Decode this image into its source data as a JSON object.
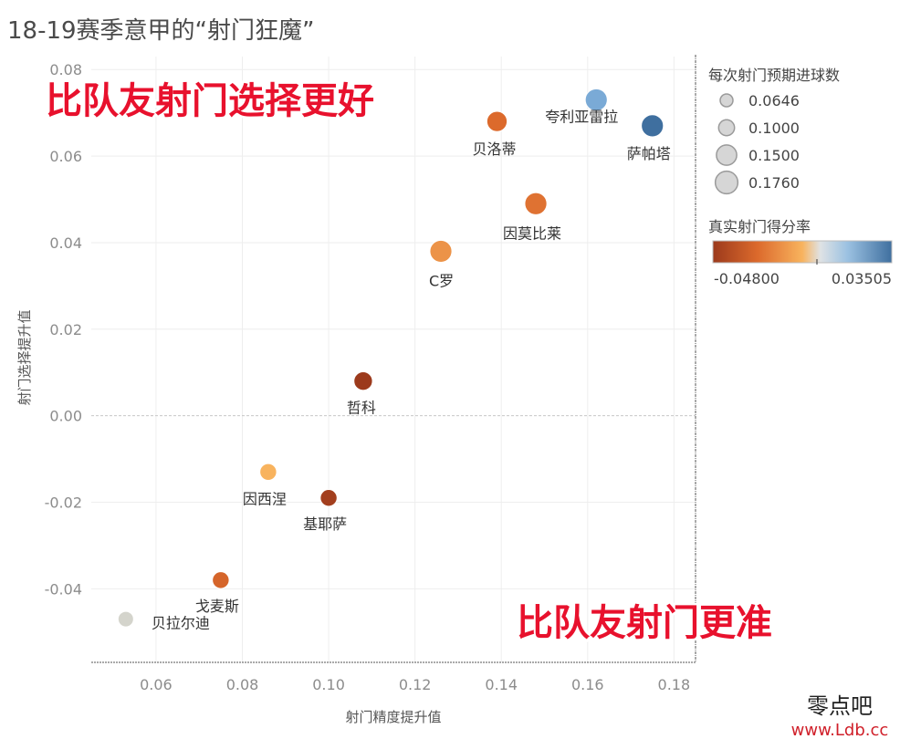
{
  "chart_data": {
    "type": "scatter",
    "title": "18-19赛季意甲的“射门狂魔”",
    "xlabel": "射门精度提升值",
    "ylabel": "射门选择提升值",
    "xlim": [
      0.045,
      0.185
    ],
    "ylim": [
      -0.057,
      0.083
    ],
    "x_ticks": [
      "0.06",
      "0.08",
      "0.10",
      "0.12",
      "0.14",
      "0.16",
      "0.18"
    ],
    "x_tick_values": [
      0.06,
      0.08,
      0.1,
      0.12,
      0.14,
      0.16,
      0.18
    ],
    "y_ticks": [
      "0.08",
      "0.06",
      "0.04",
      "0.02",
      "0.00",
      "-0.02",
      "-0.04"
    ],
    "y_tick_values": [
      0.08,
      0.06,
      0.04,
      0.02,
      0.0,
      -0.02,
      -0.04
    ],
    "points": [
      {
        "name": "夸利亚雷拉",
        "x": 0.162,
        "y": 0.073,
        "size": 0.15,
        "color_value": 0.02
      },
      {
        "name": "萨帕塔",
        "x": 0.175,
        "y": 0.067,
        "size": 0.15,
        "color_value": 0.035
      },
      {
        "name": "贝洛蒂",
        "x": 0.139,
        "y": 0.068,
        "size": 0.13,
        "color_value": -0.03
      },
      {
        "name": "因莫比莱",
        "x": 0.148,
        "y": 0.049,
        "size": 0.15,
        "color_value": -0.028
      },
      {
        "name": "C罗",
        "x": 0.126,
        "y": 0.038,
        "size": 0.15,
        "color_value": -0.02
      },
      {
        "name": "哲科",
        "x": 0.108,
        "y": 0.008,
        "size": 0.11,
        "color_value": -0.048
      },
      {
        "name": "因西涅",
        "x": 0.086,
        "y": -0.013,
        "size": 0.09,
        "color_value": -0.012
      },
      {
        "name": "基耶萨",
        "x": 0.1,
        "y": -0.019,
        "size": 0.09,
        "color_value": -0.046
      },
      {
        "name": "戈麦斯",
        "x": 0.075,
        "y": -0.038,
        "size": 0.09,
        "color_value": -0.032
      },
      {
        "name": "贝拉尔迪",
        "x": 0.053,
        "y": -0.047,
        "size": 0.075,
        "color_value": 0.0
      }
    ],
    "annotations": {
      "top_left": "比队友射门选择更好",
      "bottom_right": "比队友射门更准"
    },
    "size_legend": {
      "title": "每次射门预期进球数",
      "entries": [
        "0.0646",
        "0.1000",
        "0.1500",
        "0.1760"
      ],
      "values": [
        0.0646,
        0.1,
        0.15,
        0.176
      ]
    },
    "color_legend": {
      "title": "真实射门得分率",
      "min_label": "-0.04800",
      "max_label": "0.03505",
      "min": -0.048,
      "max": 0.03505
    },
    "colors": {
      "dark_red": "#9c3a1c",
      "orange": "#e8762c",
      "light_orange": "#f8b35e",
      "neutral": "#d4d4cc",
      "light_blue": "#7aaad6",
      "dark_blue": "#3f6f9f",
      "annotation": "#e8112d"
    }
  },
  "watermark": {
    "line1": "零点吧",
    "line2": "www.Ldb.cc"
  }
}
